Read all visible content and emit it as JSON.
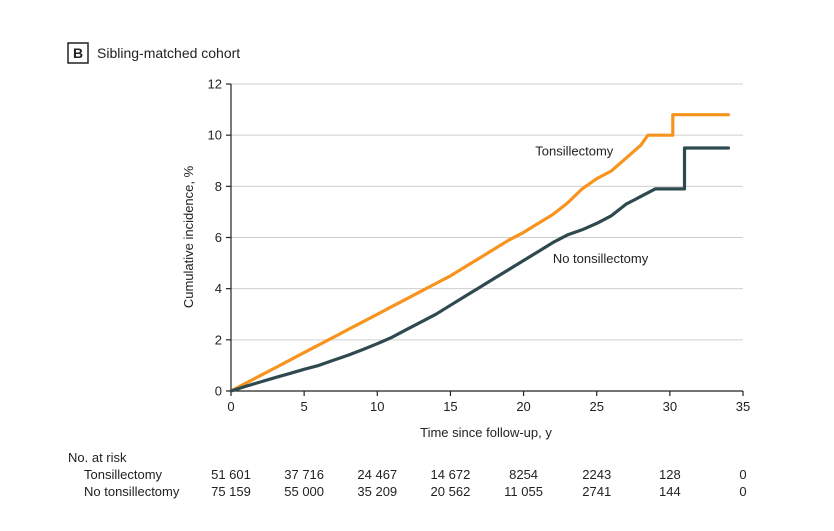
{
  "panel": {
    "letter": "B",
    "title": "Sibling-matched cohort"
  },
  "chart_data": {
    "type": "line",
    "xlabel": "Time since follow-up, y",
    "ylabel": "Cumulative incidence, %",
    "xlim": [
      0,
      35
    ],
    "ylim": [
      0,
      12
    ],
    "x_ticks": [
      "0",
      "5",
      "10",
      "15",
      "20",
      "25",
      "30",
      "35"
    ],
    "y_ticks": [
      "0",
      "2",
      "4",
      "6",
      "8",
      "10",
      "12"
    ],
    "grid": "horizontal",
    "series": [
      {
        "name": "Tonsillectomy",
        "color": "#f7941d",
        "step": false,
        "points": [
          [
            0,
            0
          ],
          [
            1,
            0.3
          ],
          [
            2,
            0.6
          ],
          [
            3,
            0.9
          ],
          [
            4,
            1.2
          ],
          [
            5,
            1.5
          ],
          [
            6,
            1.8
          ],
          [
            7,
            2.1
          ],
          [
            8,
            2.4
          ],
          [
            9,
            2.7
          ],
          [
            10,
            3.0
          ],
          [
            11,
            3.3
          ],
          [
            12,
            3.6
          ],
          [
            13,
            3.9
          ],
          [
            14,
            4.2
          ],
          [
            15,
            4.5
          ],
          [
            16,
            4.85
          ],
          [
            17,
            5.2
          ],
          [
            18,
            5.55
          ],
          [
            19,
            5.9
          ],
          [
            20,
            6.2
          ],
          [
            21,
            6.55
          ],
          [
            22,
            6.9
          ],
          [
            23,
            7.35
          ],
          [
            24,
            7.9
          ],
          [
            25,
            8.3
          ],
          [
            26,
            8.6
          ],
          [
            27,
            9.1
          ],
          [
            28,
            9.6
          ],
          [
            28.5,
            10.0
          ],
          [
            30.2,
            10.0
          ],
          [
            30.2,
            10.8
          ],
          [
            34,
            10.8
          ]
        ]
      },
      {
        "name": "No tonsillectomy",
        "color": "#2f4a4f",
        "step": false,
        "points": [
          [
            0,
            0
          ],
          [
            1,
            0.18
          ],
          [
            2,
            0.35
          ],
          [
            3,
            0.52
          ],
          [
            4,
            0.68
          ],
          [
            5,
            0.85
          ],
          [
            6,
            1.0
          ],
          [
            7,
            1.2
          ],
          [
            8,
            1.4
          ],
          [
            9,
            1.62
          ],
          [
            10,
            1.85
          ],
          [
            11,
            2.1
          ],
          [
            12,
            2.4
          ],
          [
            13,
            2.7
          ],
          [
            14,
            3.0
          ],
          [
            15,
            3.35
          ],
          [
            16,
            3.7
          ],
          [
            17,
            4.05
          ],
          [
            18,
            4.4
          ],
          [
            19,
            4.75
          ],
          [
            20,
            5.1
          ],
          [
            21,
            5.45
          ],
          [
            22,
            5.8
          ],
          [
            23,
            6.1
          ],
          [
            24,
            6.3
          ],
          [
            25,
            6.55
          ],
          [
            26,
            6.85
          ],
          [
            27,
            7.3
          ],
          [
            28,
            7.6
          ],
          [
            29,
            7.9
          ],
          [
            31,
            7.9
          ],
          [
            31,
            9.5
          ],
          [
            34,
            9.5
          ]
        ]
      }
    ],
    "annotations": [
      {
        "text": "Tonsillectomy",
        "x": 20.8,
        "y": 9.2
      },
      {
        "text": "No tonsillectomy",
        "x": 22.0,
        "y": 5.0
      }
    ]
  },
  "risk_table": {
    "header": "No. at risk",
    "rows": [
      {
        "label": "Tonsillectomy",
        "values": [
          "51 601",
          "37 716",
          "24 467",
          "14 672",
          "8254",
          "2243",
          "128",
          "0"
        ]
      },
      {
        "label": "No tonsillectomy",
        "values": [
          "75 159",
          "55 000",
          "35 209",
          "20 562",
          "11 055",
          "2741",
          "144",
          "0"
        ]
      }
    ]
  }
}
